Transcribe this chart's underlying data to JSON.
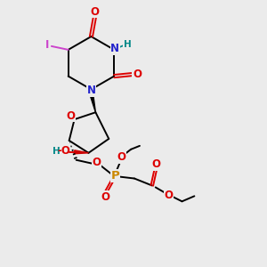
{
  "bg_color": "#ebebeb",
  "figsize": [
    3.0,
    3.0
  ],
  "dpi": 100,
  "colors": {
    "C": "#000000",
    "N": "#2222cc",
    "O": "#dd0000",
    "P": "#cc8800",
    "I": "#cc44cc",
    "H": "#008888"
  },
  "lw": 1.4,
  "fs": 8.5,
  "fs_small": 7.5
}
